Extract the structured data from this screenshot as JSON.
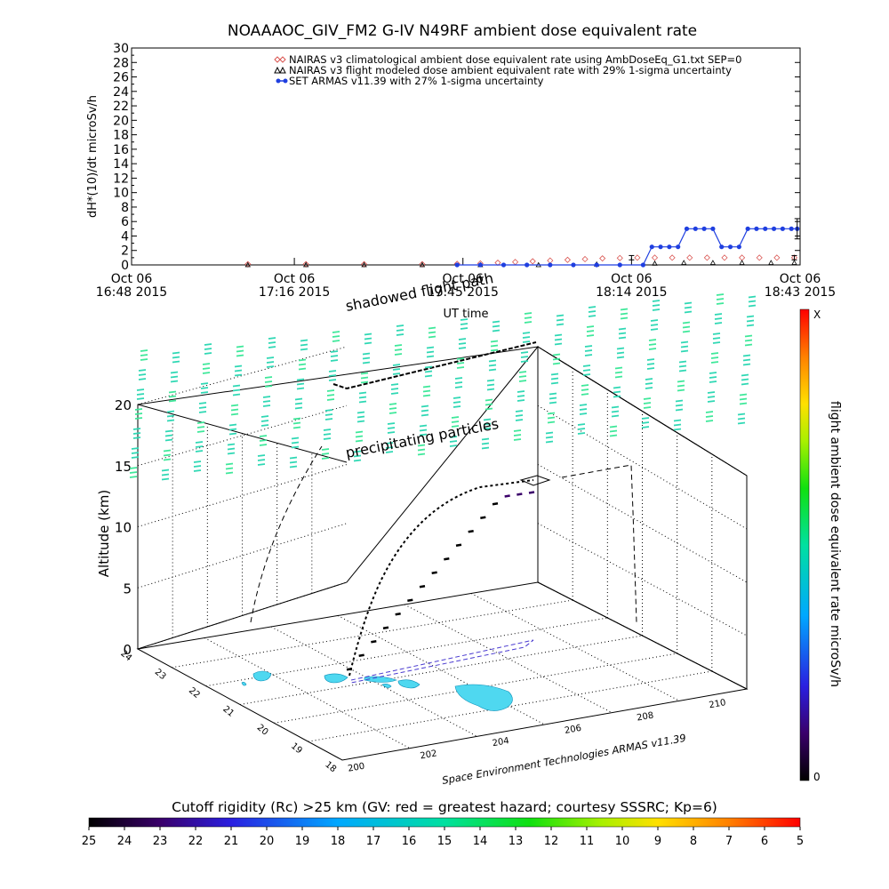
{
  "chart_data": [
    {
      "type": "line",
      "title": "NOAAAOC_GIV_FM2 G-IV    N49RF  ambient dose equivalent rate",
      "ylabel": "dH*(10)/dt microSv/h",
      "xlabel": "UT time",
      "ylim": [
        0,
        30
      ],
      "yticks": [
        "0",
        "2",
        "4",
        "6",
        "8",
        "10",
        "12",
        "14",
        "16",
        "18",
        "20",
        "22",
        "24",
        "26",
        "28",
        "30"
      ],
      "xlim_minutes": [
        0,
        115
      ],
      "xticks": [
        {
          "t": 0,
          "line1": "Oct 06",
          "line2": "16:48 2015"
        },
        {
          "t": 28,
          "line1": "Oct 06",
          "line2": "17:16 2015"
        },
        {
          "t": 57,
          "line1": "Oct 06",
          "line2": "17:45 2015"
        },
        {
          "t": 86,
          "line1": "Oct 06",
          "line2": "18:14 2015"
        },
        {
          "t": 115,
          "line1": "Oct 06",
          "line2": "18:43 2015"
        }
      ],
      "legend_position": "top-right",
      "series": [
        {
          "name": "NAIRAS v3 climatological ambient dose equivalent rate using AmbDoseEq_G1.txt SEP=0",
          "color": "#d9534f",
          "marker": "diamond",
          "t": [
            20,
            30,
            40,
            50,
            56,
            60,
            63,
            66,
            69,
            72,
            75,
            78,
            81,
            84,
            87,
            90,
            93,
            96,
            99,
            102,
            105,
            108,
            111,
            114
          ],
          "values": [
            0.1,
            0.1,
            0.1,
            0.1,
            0.15,
            0.2,
            0.3,
            0.4,
            0.5,
            0.6,
            0.7,
            0.8,
            0.9,
            0.95,
            1.0,
            1.0,
            1.0,
            1.0,
            1.0,
            1.0,
            1.0,
            1.0,
            1.0,
            1.0
          ]
        },
        {
          "name": "NAIRAS v3 flight modeled dose ambient equivalent rate with 29% 1-sigma uncertainty",
          "color": "#000000",
          "marker": "triangle",
          "t": [
            20,
            30,
            40,
            50,
            60,
            70,
            80,
            90,
            95,
            100,
            105,
            110,
            114
          ],
          "values": [
            0,
            0,
            0,
            0,
            0,
            0,
            0.1,
            0.2,
            0.3,
            0.3,
            0.3,
            0.3,
            0.3
          ]
        },
        {
          "name": "SET ARMAS v11.39 with 27% 1-sigma uncertainty",
          "color": "#1f3fe0",
          "marker": "circle",
          "t": [
            56,
            60,
            64,
            68,
            72,
            76,
            80,
            84,
            88,
            89.5,
            91,
            92.5,
            94,
            95.5,
            97,
            98.5,
            100,
            101.5,
            103,
            104.5,
            106,
            107.5,
            109,
            110.5,
            112,
            113.5,
            114.5
          ],
          "values": [
            0,
            0,
            0,
            0,
            0,
            0,
            0,
            0,
            0,
            2.5,
            2.5,
            2.5,
            2.5,
            5,
            5,
            5,
            5,
            2.5,
            2.5,
            2.5,
            5,
            5,
            5,
            5,
            5,
            5,
            5
          ]
        }
      ]
    },
    {
      "type": "scatter",
      "subtype": "3d-flight-path",
      "zlabel": "Altitude (km)",
      "zlim": [
        0,
        20
      ],
      "zticks": [
        "0",
        "5",
        "10",
        "15",
        "20"
      ],
      "longitude_ticks": [
        "200",
        "202",
        "204",
        "206",
        "208",
        "210"
      ],
      "latitude_ticks": [
        "18",
        "19",
        "20",
        "21",
        "22",
        "23",
        "24"
      ],
      "annotations": [
        "shadowed flight path",
        "precipitating particles",
        "Space Environment Technologies ARMAS v11.39"
      ],
      "colorbar": {
        "label": "flight ambient dose equivalent rate microSv/h",
        "top_label": "X",
        "bottom_label": "0"
      },
      "flight_altitudes_km": [
        0.5,
        1.5,
        2.5,
        3.5,
        4.5,
        5.5,
        6.5,
        7.5,
        8.5,
        9.5,
        10.5,
        11.5,
        12.5,
        13.0,
        13.0,
        13.0
      ]
    },
    {
      "type": "heatmap",
      "subtype": "colorbar",
      "title": "Cutoff rigidity (Rc) >25 km (GV: red = greatest hazard; courtesy SSSRC; Kp=6)",
      "tick_labels": [
        "25",
        "24",
        "23",
        "22",
        "21",
        "20",
        "19",
        "18",
        "17",
        "16",
        "15",
        "14",
        "13",
        "12",
        "11",
        "10",
        "9",
        "8",
        "7",
        "6",
        "5"
      ]
    }
  ]
}
